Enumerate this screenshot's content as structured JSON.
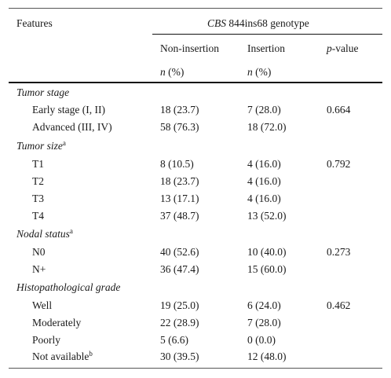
{
  "header": {
    "features_label": "Features",
    "genotype_gene": "CBS",
    "genotype_suffix": " 844ins68 genotype",
    "col_noninsertion": "Non-insertion",
    "col_insertion": "Insertion",
    "col_pvalue_italic": "p",
    "col_pvalue_rest": "-value",
    "n_italic": "n",
    "n_rest": " (%)"
  },
  "sections": [
    {
      "title": "Tumor stage",
      "sup": "",
      "rows": [
        {
          "label": "Early stage (I, II)",
          "non_insertion": "18 (23.7)",
          "insertion": "7 (28.0)",
          "p_value": "0.664"
        },
        {
          "label": "Advanced (III, IV)",
          "non_insertion": "58 (76.3)",
          "insertion": "18 (72.0)",
          "p_value": ""
        }
      ]
    },
    {
      "title": "Tumor size",
      "sup": "a",
      "rows": [
        {
          "label": "T1",
          "non_insertion": "8 (10.5)",
          "insertion": "4 (16.0)",
          "p_value": "0.792"
        },
        {
          "label": "T2",
          "non_insertion": "18 (23.7)",
          "insertion": "4 (16.0)",
          "p_value": ""
        },
        {
          "label": "T3",
          "non_insertion": "13 (17.1)",
          "insertion": "4 (16.0)",
          "p_value": ""
        },
        {
          "label": "T4",
          "non_insertion": "37 (48.7)",
          "insertion": "13 (52.0)",
          "p_value": ""
        }
      ]
    },
    {
      "title": "Nodal status",
      "sup": "a",
      "rows": [
        {
          "label": "N0",
          "non_insertion": "40 (52.6)",
          "insertion": "10 (40.0)",
          "p_value": "0.273"
        },
        {
          "label": "N+",
          "non_insertion": "36 (47.4)",
          "insertion": "15 (60.0)",
          "p_value": ""
        }
      ]
    },
    {
      "title": "Histopathological grade",
      "sup": "",
      "rows": [
        {
          "label": "Well",
          "non_insertion": "19 (25.0)",
          "insertion": "6 (24.0)",
          "p_value": "0.462"
        },
        {
          "label": "Moderately",
          "non_insertion": "22 (28.9)",
          "insertion": "7 (28.0)",
          "p_value": ""
        },
        {
          "label": "Poorly",
          "non_insertion": "5 (6.6)",
          "insertion": "0 (0.0)",
          "p_value": ""
        },
        {
          "label": "Not available",
          "label_sup": "b",
          "non_insertion": "30 (39.5)",
          "insertion": "12 (48.0)",
          "p_value": ""
        }
      ]
    }
  ]
}
